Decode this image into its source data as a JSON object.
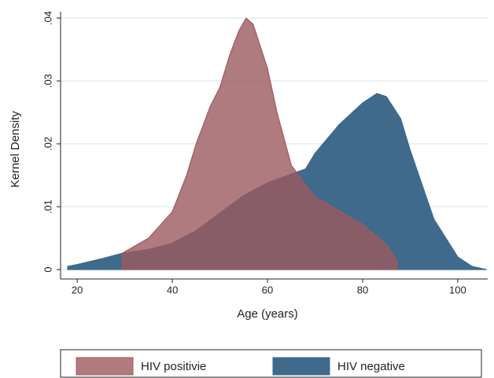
{
  "chart_data": {
    "type": "area",
    "x_label": "Age (years)",
    "y_label": "Kernel Density",
    "xlim": [
      16.5,
      106.3
    ],
    "xticks": [
      20,
      40,
      60,
      80,
      100
    ],
    "ylim": [
      -0.0015,
      0.041
    ],
    "yticks": [
      0,
      {
        "value": 0.01,
        "label": ".01"
      },
      {
        "value": 0.02,
        "label": ".02"
      },
      {
        "value": 0.03,
        "label": ".03"
      },
      {
        "value": 0.04,
        "label": ".04"
      }
    ],
    "grid": true,
    "legend": "bottom",
    "series": [
      {
        "name": "HIV negative",
        "color": "#3f6a8c",
        "x": [
          18,
          20,
          25,
          29.5,
          35,
          40,
          45,
          50,
          55,
          60,
          65,
          68,
          70,
          75,
          80,
          83,
          85,
          88,
          90,
          95,
          100,
          103,
          106
        ],
        "values": [
          0.0005,
          0.0008,
          0.0017,
          0.0026,
          0.0032,
          0.0042,
          0.0062,
          0.009,
          0.0118,
          0.0138,
          0.0152,
          0.016,
          0.0185,
          0.023,
          0.0265,
          0.028,
          0.0275,
          0.024,
          0.019,
          0.008,
          0.002,
          0.0005,
          0
        ]
      },
      {
        "name": "HIV positivie",
        "color": "#9c5a5f",
        "x": [
          29.5,
          35,
          40,
          43,
          45,
          48,
          50,
          52,
          54,
          55.5,
          57,
          60,
          62,
          65,
          68,
          70,
          75,
          80,
          85,
          87.3
        ],
        "values": [
          0.0026,
          0.005,
          0.0092,
          0.015,
          0.02,
          0.026,
          0.029,
          0.034,
          0.038,
          0.04,
          0.039,
          0.032,
          0.025,
          0.0166,
          0.0135,
          0.0116,
          0.0094,
          0.0072,
          0.004,
          0.0014
        ]
      }
    ]
  }
}
